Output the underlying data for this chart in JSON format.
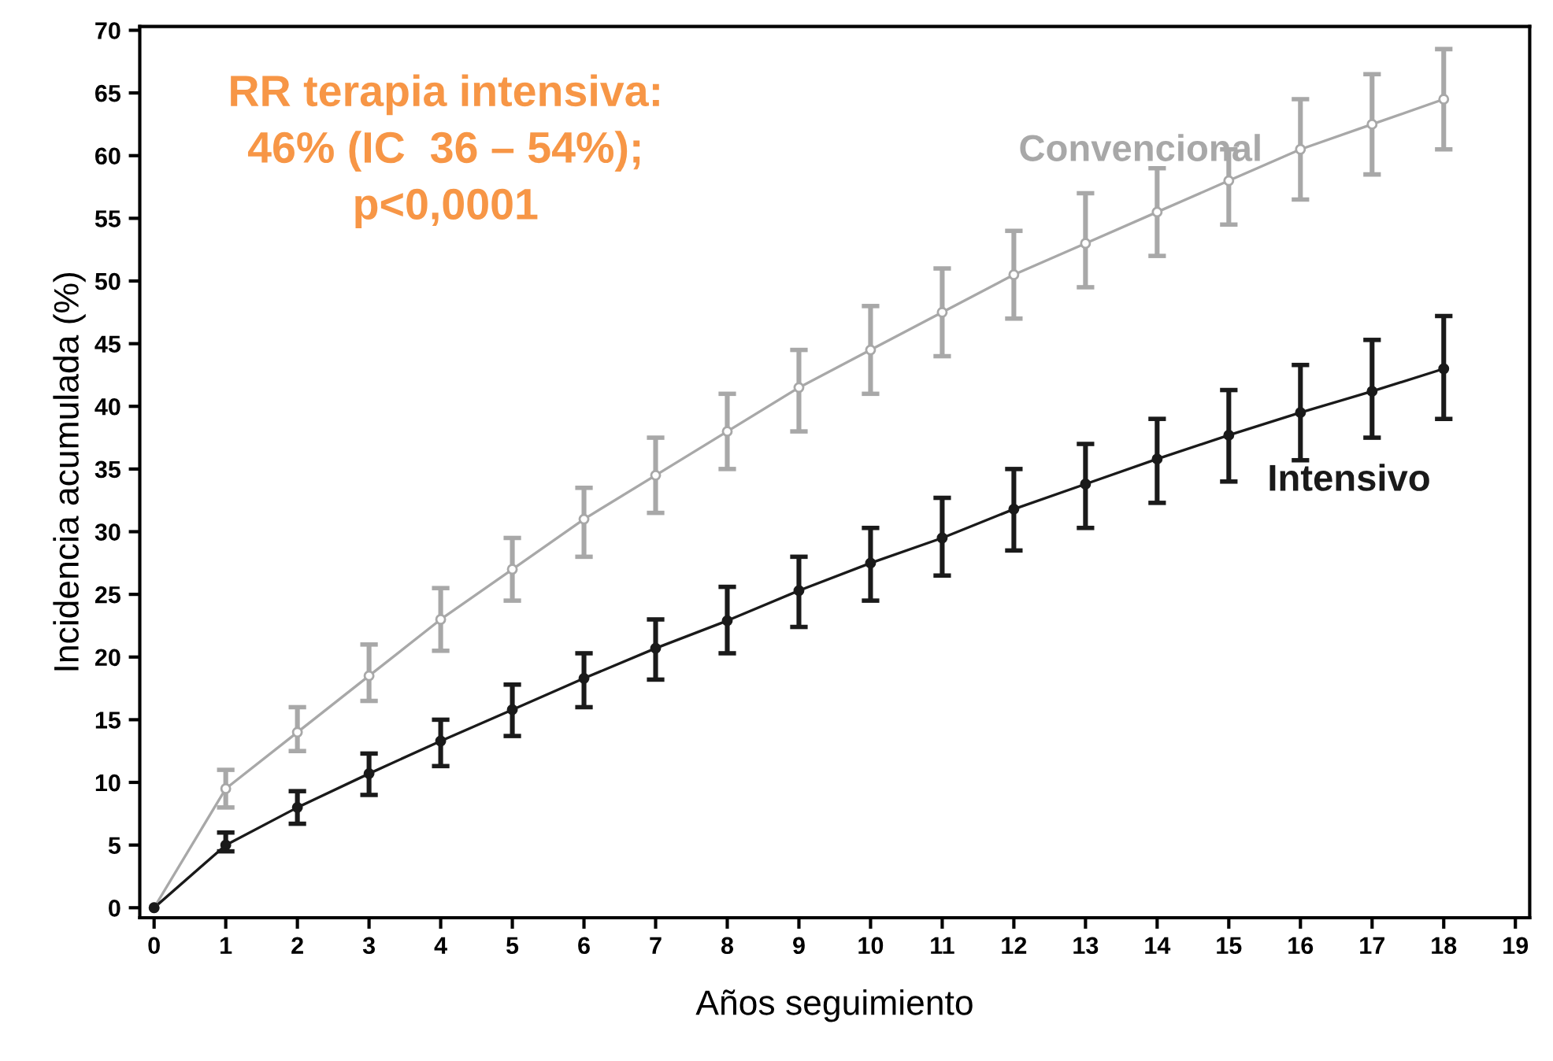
{
  "chart_data": {
    "type": "line",
    "xlabel": "Años seguimiento",
    "ylabel": "Incidencia acumulada (%)",
    "x": [
      0,
      1,
      2,
      3,
      4,
      5,
      6,
      7,
      8,
      9,
      10,
      11,
      12,
      13,
      14,
      15,
      16,
      17,
      18
    ],
    "series": [
      {
        "name": "Convencional",
        "color": "#a8a8a8",
        "values": [
          0,
          9.5,
          14,
          18.5,
          23,
          27,
          31,
          34.5,
          38,
          41.5,
          44.5,
          47.5,
          50.5,
          53,
          55.5,
          58,
          60.5,
          62.5,
          64.5
        ],
        "errors": [
          null,
          [
            8,
            11
          ],
          [
            12.5,
            16
          ],
          [
            16.5,
            21
          ],
          [
            20.5,
            25.5
          ],
          [
            24.5,
            29.5
          ],
          [
            28,
            33.5
          ],
          [
            31.5,
            37.5
          ],
          [
            35,
            41
          ],
          [
            38,
            44.5
          ],
          [
            41,
            48
          ],
          [
            44,
            51
          ],
          [
            47,
            54
          ],
          [
            49.5,
            57
          ],
          [
            52,
            59
          ],
          [
            54.5,
            60.5
          ],
          [
            56.5,
            64.5
          ],
          [
            58.5,
            66.5
          ],
          [
            60.5,
            68.5
          ]
        ]
      },
      {
        "name": "Intensivo",
        "color": "#1a1a1a",
        "values": [
          0,
          5,
          8,
          10.7,
          13.3,
          15.8,
          18.3,
          20.7,
          22.9,
          25.3,
          27.5,
          29.5,
          31.8,
          33.8,
          35.8,
          37.7,
          39.5,
          41.2,
          43
        ],
        "errors": [
          null,
          [
            4.5,
            6
          ],
          [
            6.7,
            9.3
          ],
          [
            9,
            12.3
          ],
          [
            11.3,
            15
          ],
          [
            13.7,
            17.8
          ],
          [
            16,
            20.3
          ],
          [
            18.2,
            23
          ],
          [
            20.3,
            25.6
          ],
          [
            22.4,
            28
          ],
          [
            24.5,
            30.3
          ],
          [
            26.5,
            32.7
          ],
          [
            28.5,
            35
          ],
          [
            30.3,
            37
          ],
          [
            32.3,
            39
          ],
          [
            34,
            41.3
          ],
          [
            35.7,
            43.3
          ],
          [
            37.5,
            45.3
          ],
          [
            39,
            47.2
          ]
        ]
      }
    ],
    "xlim": [
      -0.2,
      19.2
    ],
    "ylim": [
      -0.8,
      70.3
    ],
    "xticks": [
      0,
      1,
      2,
      3,
      4,
      5,
      6,
      7,
      8,
      9,
      10,
      11,
      12,
      13,
      14,
      15,
      16,
      17,
      18,
      19
    ],
    "yticks": [
      0,
      5,
      10,
      15,
      20,
      25,
      30,
      35,
      40,
      45,
      50,
      55,
      60,
      65,
      70
    ],
    "marker": "circle",
    "grid": false,
    "legend": false,
    "annotations": [
      "RR terapia intensiva:\n46% (IC  36 – 54%);\np<0,0001"
    ]
  }
}
